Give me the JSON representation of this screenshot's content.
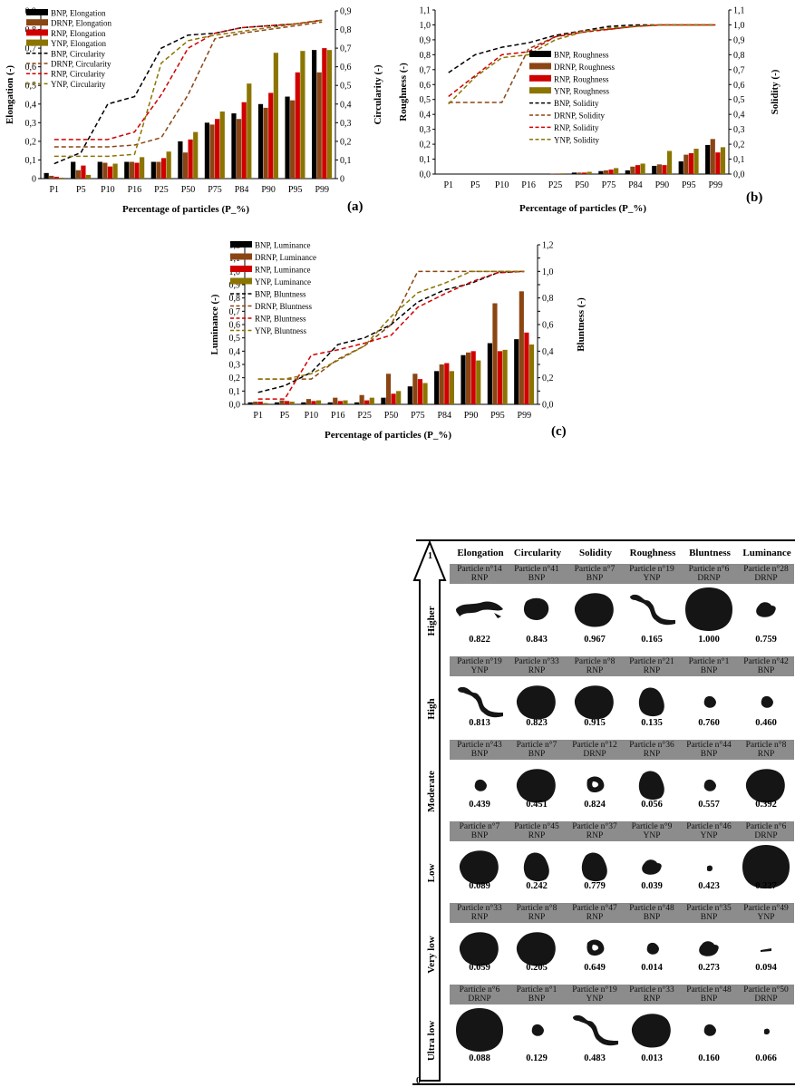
{
  "categories": [
    "P1",
    "P5",
    "P10",
    "P16",
    "P25",
    "P50",
    "P75",
    "P84",
    "P90",
    "P95",
    "P99"
  ],
  "colors": {
    "BNP": "#000000",
    "DRNP": "#8B4513",
    "RNP": "#d00000",
    "YNP": "#8B7500"
  },
  "charts": [
    {
      "id": "a",
      "panel_label": "(a)",
      "xlabel": "Percentage of particles (P_%)",
      "ylabel_left": "Elongation (-)",
      "ylabel_right": "Circularity (-)",
      "ylim_left": [
        0,
        0.9
      ],
      "ylim_right": [
        0,
        0.9
      ],
      "left_ticks": [
        "0",
        "0,1",
        "0,2",
        "0,3",
        "0,4",
        "0,5",
        "0,6",
        "0,7",
        "0,8",
        "0,9"
      ],
      "right_ticks": [
        "0",
        "0,1",
        "0,2",
        "0,3",
        "0,4",
        "0,5",
        "0,6",
        "0,7",
        "0,8",
        "0,9"
      ],
      "bars": [
        {
          "name": "BNP, Elongation",
          "key": "BNP",
          "values": [
            0.03,
            0.09,
            0.09,
            0.09,
            0.09,
            0.2,
            0.3,
            0.35,
            0.4,
            0.44,
            0.69
          ]
        },
        {
          "name": "DRNP, Elongation",
          "key": "DRNP",
          "values": [
            0.015,
            0.045,
            0.085,
            0.09,
            0.09,
            0.14,
            0.29,
            0.32,
            0.38,
            0.42,
            0.57
          ]
        },
        {
          "name": "RNP, Elongation",
          "key": "RNP",
          "values": [
            0.01,
            0.07,
            0.065,
            0.085,
            0.11,
            0.21,
            0.32,
            0.41,
            0.46,
            0.57,
            0.7
          ]
        },
        {
          "name": "YNP, Elongation",
          "key": "YNP",
          "values": [
            0.005,
            0.02,
            0.08,
            0.115,
            0.145,
            0.25,
            0.36,
            0.51,
            0.675,
            0.685,
            0.69
          ]
        }
      ],
      "lines": [
        {
          "name": "BNP, Circularity",
          "key": "BNP",
          "values": [
            0.08,
            0.14,
            0.4,
            0.44,
            0.7,
            0.77,
            0.78,
            0.81,
            0.82,
            0.83,
            0.85
          ]
        },
        {
          "name": "DRNP, Circularity",
          "key": "DRNP",
          "values": [
            0.17,
            0.17,
            0.17,
            0.18,
            0.22,
            0.45,
            0.75,
            0.78,
            0.8,
            0.82,
            0.84
          ]
        },
        {
          "name": "RNP, Circularity",
          "key": "RNP",
          "values": [
            0.21,
            0.21,
            0.21,
            0.25,
            0.45,
            0.7,
            0.78,
            0.81,
            0.82,
            0.83,
            0.85
          ]
        },
        {
          "name": "YNP, Circularity",
          "key": "YNP",
          "values": [
            0.12,
            0.12,
            0.12,
            0.13,
            0.62,
            0.74,
            0.77,
            0.79,
            0.81,
            0.83,
            0.85
          ]
        }
      ]
    },
    {
      "id": "b",
      "panel_label": "(b)",
      "xlabel": "Percentage of particles (P_%)",
      "ylabel_left": "Roughness (-)",
      "ylabel_right": "Solidity (-)",
      "ylim_left": [
        0,
        1.1
      ],
      "ylim_right": [
        0,
        1.1
      ],
      "left_ticks": [
        "0,0",
        "0,1",
        "0,2",
        "0,3",
        "0,4",
        "0,5",
        "0,6",
        "0,7",
        "0,8",
        "0,9",
        "1,0",
        "1,1"
      ],
      "right_ticks": [
        "0,0",
        "0,1",
        "0,2",
        "0,3",
        "0,4",
        "0,5",
        "0,6",
        "0,7",
        "0,8",
        "0,9",
        "1,0",
        "1,1"
      ],
      "bars": [
        {
          "name": "BNP, Roughness",
          "key": "BNP",
          "values": [
            0,
            0,
            0,
            0,
            0.002,
            0.01,
            0.02,
            0.025,
            0.055,
            0.085,
            0.195
          ]
        },
        {
          "name": "DRNP, Roughness",
          "key": "DRNP",
          "values": [
            0,
            0,
            0,
            0,
            0.002,
            0.01,
            0.025,
            0.05,
            0.065,
            0.13,
            0.235
          ]
        },
        {
          "name": "RNP, Roughness",
          "key": "RNP",
          "values": [
            0,
            0,
            0,
            0,
            0.002,
            0.01,
            0.03,
            0.06,
            0.06,
            0.14,
            0.145
          ]
        },
        {
          "name": "YNP, Roughness",
          "key": "YNP",
          "values": [
            0,
            0,
            0,
            0,
            0.005,
            0.015,
            0.04,
            0.07,
            0.155,
            0.17,
            0.18
          ]
        }
      ],
      "lines": [
        {
          "name": "BNP, Solidity",
          "key": "BNP",
          "values": [
            0.68,
            0.8,
            0.85,
            0.88,
            0.93,
            0.96,
            0.99,
            1.0,
            1.0,
            1.0,
            1.0
          ]
        },
        {
          "name": "DRNP, Solidity",
          "key": "DRNP",
          "values": [
            0.48,
            0.48,
            0.48,
            0.84,
            0.92,
            0.96,
            0.97,
            0.99,
            1.0,
            1.0,
            1.0
          ]
        },
        {
          "name": "RNP, Solidity",
          "key": "RNP",
          "values": [
            0.52,
            0.66,
            0.8,
            0.82,
            0.92,
            0.95,
            0.97,
            0.99,
            1.0,
            1.0,
            1.0
          ]
        },
        {
          "name": "YNP, Solidity",
          "key": "YNP",
          "values": [
            0.47,
            0.65,
            0.78,
            0.8,
            0.9,
            0.95,
            0.98,
            0.99,
            1.0,
            1.0,
            1.0
          ]
        }
      ]
    },
    {
      "id": "c",
      "panel_label": "(c)",
      "xlabel": "Percentage of particles (P_%)",
      "ylabel_left": "Luminance (-)",
      "ylabel_right": "Bluntness (-)",
      "ylim_left": [
        0,
        1.2
      ],
      "ylim_right": [
        0,
        1.2
      ],
      "left_ticks": [
        "0,0",
        "0,1",
        "0,2",
        "0,3",
        "0,4",
        "0,5",
        "0,6",
        "0,7",
        "0,8",
        "0,9",
        "1,0",
        "1,1",
        "1,2"
      ],
      "right_ticks": [
        "0,0",
        "",
        "0,2",
        "",
        "0,4",
        "",
        "0,6",
        "",
        "0,8",
        "",
        "1,0",
        "",
        "1,2"
      ],
      "bars": [
        {
          "name": "BNP, Luminance",
          "key": "BNP",
          "values": [
            0.015,
            0.015,
            0.015,
            0.015,
            0.015,
            0.05,
            0.135,
            0.25,
            0.37,
            0.46,
            0.49
          ]
        },
        {
          "name": "DRNP, Luminance",
          "key": "DRNP",
          "values": [
            0.02,
            0.03,
            0.04,
            0.05,
            0.07,
            0.23,
            0.23,
            0.3,
            0.39,
            0.76,
            0.85
          ]
        },
        {
          "name": "RNP, Luminance",
          "key": "RNP",
          "values": [
            0.02,
            0.025,
            0.025,
            0.025,
            0.03,
            0.08,
            0.19,
            0.31,
            0.4,
            0.4,
            0.54
          ]
        },
        {
          "name": "YNP, Luminance",
          "key": "YNP",
          "values": [
            0.01,
            0.02,
            0.03,
            0.03,
            0.05,
            0.1,
            0.16,
            0.25,
            0.33,
            0.41,
            0.45
          ]
        }
      ],
      "lines": [
        {
          "name": "BNP, Bluntness",
          "key": "BNP",
          "values": [
            0.09,
            0.14,
            0.24,
            0.45,
            0.5,
            0.6,
            0.77,
            0.86,
            0.91,
            0.99,
            1.0
          ]
        },
        {
          "name": "DRNP, Bluntness",
          "key": "DRNP",
          "values": [
            0.19,
            0.19,
            0.19,
            0.34,
            0.44,
            0.6,
            1.0,
            1.0,
            1.0,
            1.0,
            1.0
          ]
        },
        {
          "name": "RNP, Bluntness",
          "key": "RNP",
          "values": [
            0.04,
            0.04,
            0.37,
            0.41,
            0.46,
            0.52,
            0.73,
            0.83,
            0.92,
            0.99,
            1.0
          ]
        },
        {
          "name": "YNP, Bluntness",
          "key": "YNP",
          "values": [
            0.19,
            0.19,
            0.23,
            0.33,
            0.44,
            0.66,
            0.84,
            0.91,
            1.0,
            1.0,
            1.0
          ]
        }
      ]
    }
  ],
  "table": {
    "axis_top": "1",
    "axis_bottom": "0",
    "columns": [
      "Elongation",
      "Circularity",
      "Solidity",
      "Roughness",
      "Bluntness",
      "Luminance"
    ],
    "rows": [
      {
        "label": "Higher",
        "cells": [
          {
            "particle": "Particle n°14",
            "type": "RNP",
            "value": "0.822",
            "shape": "elong"
          },
          {
            "particle": "Particle n°41",
            "type": "BNP",
            "value": "0.843",
            "shape": "round-s"
          },
          {
            "particle": "Particle n°7",
            "type": "BNP",
            "value": "0.967",
            "shape": "round-m"
          },
          {
            "particle": "Particle n°19",
            "type": "YNP",
            "value": "0.165",
            "shape": "worm"
          },
          {
            "particle": "Particle n°6",
            "type": "DRNP",
            "value": "1.000",
            "shape": "round-xl"
          },
          {
            "particle": "Particle n°28",
            "type": "DRNP",
            "value": "0.759",
            "shape": "blob-s"
          }
        ]
      },
      {
        "label": "High",
        "cells": [
          {
            "particle": "Particle n°19",
            "type": "YNP",
            "value": "0.813",
            "shape": "worm"
          },
          {
            "particle": "Particle n°33",
            "type": "RNP",
            "value": "0.823",
            "shape": "round-m"
          },
          {
            "particle": "Particle n°8",
            "type": "RNP",
            "value": "0.915",
            "shape": "round-m"
          },
          {
            "particle": "Particle n°21",
            "type": "RNP",
            "value": "0.135",
            "shape": "blob-m"
          },
          {
            "particle": "Particle n°1",
            "type": "BNP",
            "value": "0.760",
            "shape": "blob-xs"
          },
          {
            "particle": "Particle n°42",
            "type": "BNP",
            "value": "0.460",
            "shape": "blob-xs"
          }
        ]
      },
      {
        "label": "Moderate",
        "cells": [
          {
            "particle": "Particle n°43",
            "type": "BNP",
            "value": "0.439",
            "shape": "blob-xs"
          },
          {
            "particle": "Particle n°7",
            "type": "BNP",
            "value": "0.451",
            "shape": "round-m"
          },
          {
            "particle": "Particle n°12",
            "type": "DRNP",
            "value": "0.824",
            "shape": "ring"
          },
          {
            "particle": "Particle n°36",
            "type": "RNP",
            "value": "0.056",
            "shape": "blob-m"
          },
          {
            "particle": "Particle n°44",
            "type": "BNP",
            "value": "0.557",
            "shape": "blob-xs"
          },
          {
            "particle": "Particle n°8",
            "type": "RNP",
            "value": "0.392",
            "shape": "round-m"
          }
        ]
      },
      {
        "label": "Low",
        "cells": [
          {
            "particle": "Particle n°7",
            "type": "BNP",
            "value": "0.089",
            "shape": "round-m"
          },
          {
            "particle": "Particle n°45",
            "type": "RNP",
            "value": "0.242",
            "shape": "blob-m"
          },
          {
            "particle": "Particle n°37",
            "type": "RNP",
            "value": "0.779",
            "shape": "blob-m"
          },
          {
            "particle": "Particle n°9",
            "type": "YNP",
            "value": "0.039",
            "shape": "blob-s"
          },
          {
            "particle": "Particle n°46",
            "type": "YNP",
            "value": "0.423",
            "shape": "dot"
          },
          {
            "particle": "Particle n°6",
            "type": "DRNP",
            "value": "0.227",
            "shape": "round-xl"
          }
        ]
      },
      {
        "label": "Very low",
        "cells": [
          {
            "particle": "Particle n°33",
            "type": "RNP",
            "value": "0.059",
            "shape": "round-m"
          },
          {
            "particle": "Particle n°8",
            "type": "RNP",
            "value": "0.205",
            "shape": "round-m"
          },
          {
            "particle": "Particle n°47",
            "type": "RNP",
            "value": "0.649",
            "shape": "ring"
          },
          {
            "particle": "Particle n°48",
            "type": "BNP",
            "value": "0.014",
            "shape": "blob-xs"
          },
          {
            "particle": "Particle n°35",
            "type": "BNP",
            "value": "0.273",
            "shape": "blob-s"
          },
          {
            "particle": "Particle n°49",
            "type": "YNP",
            "value": "0.094",
            "shape": "dash"
          }
        ]
      },
      {
        "label": "Ultra low",
        "cells": [
          {
            "particle": "Particle n°6",
            "type": "DRNP",
            "value": "0.088",
            "shape": "round-xl"
          },
          {
            "particle": "Particle n°1",
            "type": "BNP",
            "value": "0.129",
            "shape": "blob-xs"
          },
          {
            "particle": "Particle n°19",
            "type": "YNP",
            "value": "0.483",
            "shape": "worm"
          },
          {
            "particle": "Particle n°33",
            "type": "RNP",
            "value": "0.013",
            "shape": "round-m"
          },
          {
            "particle": "Particle n°48",
            "type": "BNP",
            "value": "0.160",
            "shape": "blob-xs"
          },
          {
            "particle": "Particle n°50",
            "type": "DRNP",
            "value": "0.066",
            "shape": "dot"
          }
        ]
      }
    ]
  },
  "chart_data": [
    {
      "type": "bar",
      "title": "(a)",
      "categories": [
        "P1",
        "P5",
        "P10",
        "P16",
        "P25",
        "P50",
        "P75",
        "P84",
        "P90",
        "P95",
        "P99"
      ],
      "xlabel": "Percentage of particles (P_%)",
      "ylabel": "Elongation (-)",
      "y2label": "Circularity (-)",
      "ylim": [
        0,
        0.9
      ],
      "series_ref": "charts.0"
    },
    {
      "type": "bar",
      "title": "(b)",
      "categories": [
        "P1",
        "P5",
        "P10",
        "P16",
        "P25",
        "P50",
        "P75",
        "P84",
        "P90",
        "P95",
        "P99"
      ],
      "xlabel": "Percentage of particles (P_%)",
      "ylabel": "Roughness (-)",
      "y2label": "Solidity (-)",
      "ylim": [
        0,
        1.1
      ],
      "series_ref": "charts.1"
    },
    {
      "type": "bar",
      "title": "(c)",
      "categories": [
        "P1",
        "P5",
        "P10",
        "P16",
        "P25",
        "P50",
        "P75",
        "P84",
        "P90",
        "P95",
        "P99"
      ],
      "xlabel": "Percentage of particles (P_%)",
      "ylabel": "Luminance (-)",
      "y2label": "Bluntness (-)",
      "ylim": [
        0,
        1.2
      ],
      "series_ref": "charts.2"
    }
  ]
}
